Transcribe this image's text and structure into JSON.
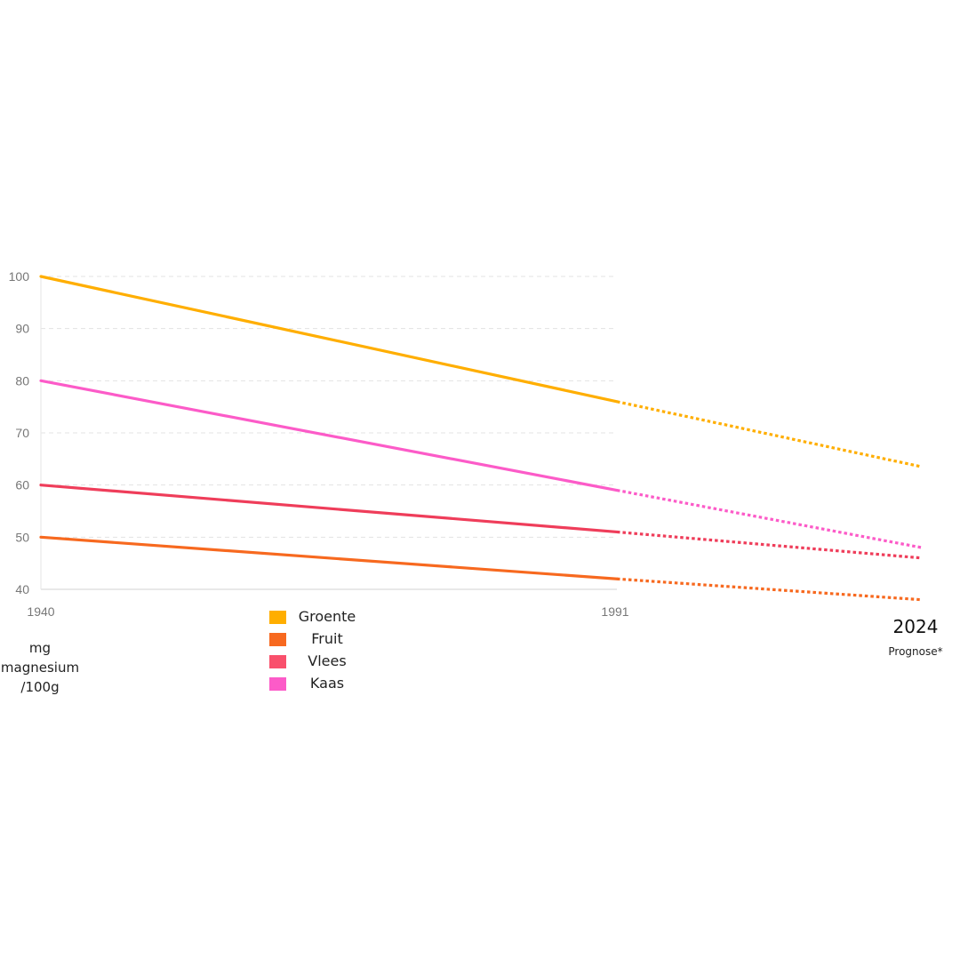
{
  "chart_data": {
    "type": "line",
    "title": "",
    "y_ticks": [
      100,
      90,
      80,
      70,
      60,
      50,
      40
    ],
    "ylim": [
      40,
      100
    ],
    "x_ticks": [
      "1940",
      "1991"
    ],
    "x_end_label": "2024",
    "x_end_note": "Prognose*",
    "ylabel_lines": [
      "mg",
      "magnesium",
      "/100g"
    ],
    "grid": true,
    "legend_placement": "bottom-center",
    "series": [
      {
        "name": "Groente",
        "color": "#ffae00",
        "values": [
          {
            "x": 1940,
            "y": 100
          },
          {
            "x": 1991,
            "y": 76
          },
          {
            "x": 2024,
            "y": 63.5,
            "forecast": true
          }
        ]
      },
      {
        "name": "Fruit",
        "color": "#f7691f",
        "values": [
          {
            "x": 1940,
            "y": 50
          },
          {
            "x": 1991,
            "y": 42
          },
          {
            "x": 2024,
            "y": 38,
            "forecast": true
          }
        ]
      },
      {
        "name": "Vlees",
        "color": "#ef3d5a",
        "values": [
          {
            "x": 1940,
            "y": 60
          },
          {
            "x": 1991,
            "y": 51
          },
          {
            "x": 2024,
            "y": 46,
            "forecast": true
          }
        ]
      },
      {
        "name": "Kaas",
        "color": "#fc5bc8",
        "values": [
          {
            "x": 1940,
            "y": 80
          },
          {
            "x": 1991,
            "y": 59
          },
          {
            "x": 2024,
            "y": 48,
            "forecast": true
          }
        ]
      }
    ],
    "legend_colors": [
      "#ffae00",
      "#f7691f",
      "#f9506c",
      "#fc5bc8"
    ]
  }
}
